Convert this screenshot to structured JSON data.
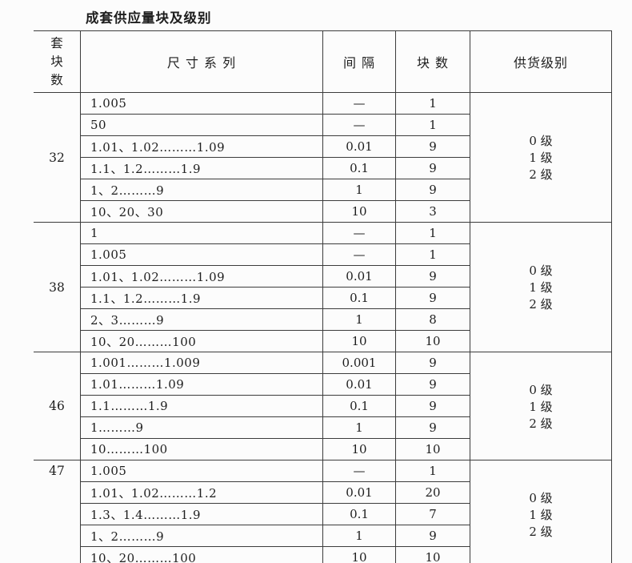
{
  "title": "成套供应量块及级别",
  "table": {
    "headers": {
      "set_count": "套块数",
      "size_series": "尺 寸 系 列",
      "interval": "间  隔",
      "block_count": "块  数",
      "supply_grade": "供货级别"
    },
    "sections": [
      {
        "set": "32",
        "label_position": "center",
        "rows": [
          {
            "series": "1.005",
            "interval": "—",
            "blocks": "1"
          },
          {
            "series": "50",
            "interval": "—",
            "blocks": "1"
          },
          {
            "series": "1.01、1.02………1.09",
            "interval": "0.01",
            "blocks": "9"
          },
          {
            "series": "1.1、1.2………1.9",
            "interval": "0.1",
            "blocks": "9"
          },
          {
            "series": "1、2………9",
            "interval": "1",
            "blocks": "9"
          },
          {
            "series": "10、20、30",
            "interval": "10",
            "blocks": "3"
          }
        ],
        "grades": [
          "0 级",
          "1 级",
          "2 级"
        ]
      },
      {
        "set": "38",
        "label_position": "center",
        "rows": [
          {
            "series": "1",
            "interval": "—",
            "blocks": "1"
          },
          {
            "series": "1.005",
            "interval": "—",
            "blocks": "1"
          },
          {
            "series": "1.01、1.02………1.09",
            "interval": "0.01",
            "blocks": "9"
          },
          {
            "series": "1.1、1.2………1.9",
            "interval": "0.1",
            "blocks": "9"
          },
          {
            "series": "2、3………9",
            "interval": "1",
            "blocks": "8"
          },
          {
            "series": "10、20………100",
            "interval": "10",
            "blocks": "10"
          }
        ],
        "grades": [
          "0 级",
          "1 级",
          "2 级"
        ]
      },
      {
        "set": "46",
        "label_position": "center",
        "rows": [
          {
            "series": "1.001………1.009",
            "interval": "0.001",
            "blocks": "9"
          },
          {
            "series": "1.01………1.09",
            "interval": "0.01",
            "blocks": "9"
          },
          {
            "series": "1.1………1.9",
            "interval": "0.1",
            "blocks": "9"
          },
          {
            "series": "1………9",
            "interval": "1",
            "blocks": "9"
          },
          {
            "series": "10………100",
            "interval": "10",
            "blocks": "10"
          }
        ],
        "grades": [
          "0 级",
          "1 级",
          "2 级"
        ]
      },
      {
        "set": "47",
        "label_position": "top",
        "rows": [
          {
            "series": "1.005",
            "interval": "—",
            "blocks": "1"
          },
          {
            "series": "1.01、1.02………1.2",
            "interval": "0.01",
            "blocks": "20"
          },
          {
            "series": "1.3、1.4………1.9",
            "interval": "0.1",
            "blocks": "7"
          },
          {
            "series": "1、2………9",
            "interval": "1",
            "blocks": "9"
          },
          {
            "series": "10、20………100",
            "interval": "10",
            "blocks": "10"
          }
        ],
        "grades": [
          "0 级",
          "1 级",
          "2 级"
        ]
      }
    ]
  }
}
